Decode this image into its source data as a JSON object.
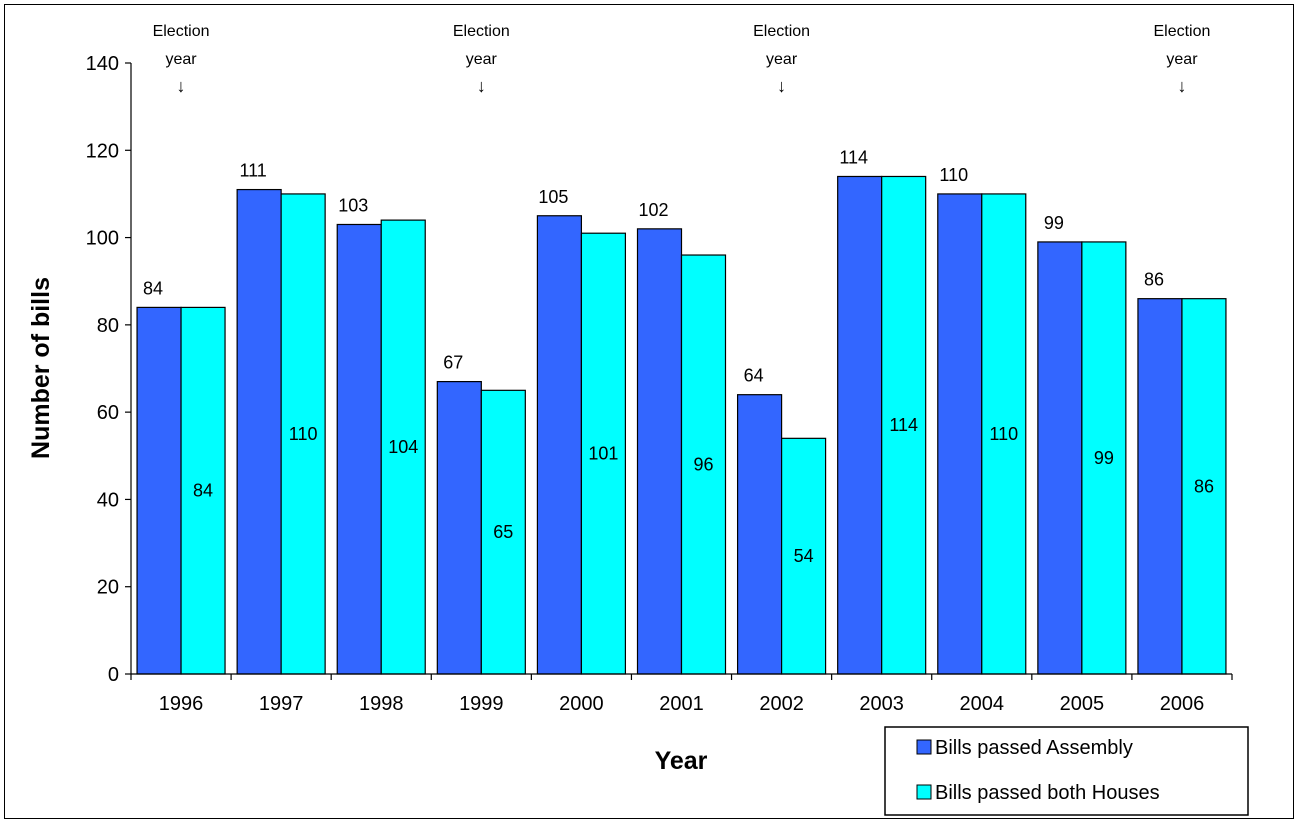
{
  "chart_data": {
    "type": "bar",
    "title": "",
    "xlabel": "Year",
    "ylabel": "Number of bills",
    "categories": [
      "1996",
      "1997",
      "1998",
      "1999",
      "2000",
      "2001",
      "2002",
      "2003",
      "2004",
      "2005",
      "2006"
    ],
    "series": [
      {
        "name": "Bills passed Assembly",
        "values": [
          84,
          111,
          103,
          67,
          105,
          102,
          64,
          114,
          110,
          99,
          86
        ],
        "color": "#3366ff"
      },
      {
        "name": "Bills passed both Houses",
        "values": [
          84,
          110,
          104,
          65,
          101,
          96,
          54,
          114,
          110,
          99,
          86
        ],
        "color": "#00ffff"
      }
    ],
    "ylim": [
      0,
      140
    ],
    "yticks": [
      "0",
      "20",
      "40",
      "60",
      "80",
      "100",
      "120",
      "140"
    ],
    "grid": false,
    "legend_position": "bottom-right",
    "annotations": [
      {
        "category": "1996",
        "line1": "Election",
        "line2": "year",
        "arrow": "↓"
      },
      {
        "category": "1999",
        "line1": "Election",
        "line2": "year",
        "arrow": "↓"
      },
      {
        "category": "2002",
        "line1": "Election",
        "line2": "year",
        "arrow": "↓"
      },
      {
        "category": "2006",
        "line1": "Election",
        "line2": "year",
        "arrow": "↓"
      }
    ]
  }
}
